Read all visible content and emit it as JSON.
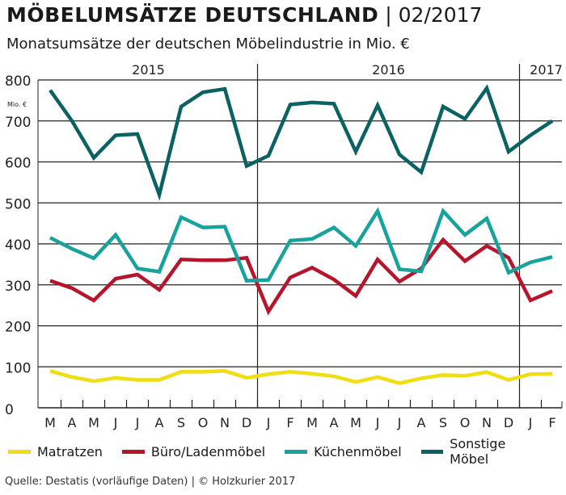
{
  "header": {
    "title_bold": "MÖBELUMSÄTZE DEUTSCHLAND",
    "title_rest": " | 02/2017",
    "subtitle": "Monatsumsätze der deutschen Möbelindustrie in Mio. €"
  },
  "source": "Quelle: Destatis (vorläufige Daten) | © Holzkurier 2017",
  "chart_data": {
    "type": "line",
    "title": "MÖBELUMSÄTZE DEUTSCHLAND | 02/2017",
    "ylabel": "Mio. €",
    "ylim": [
      0,
      800
    ],
    "yticks": [
      "0",
      "100",
      "200",
      "300",
      "400",
      "500",
      "600",
      "700",
      "800"
    ],
    "grid": true,
    "legend_position": "bottom",
    "years": [
      {
        "label": "2015",
        "start": 0,
        "end": 10
      },
      {
        "label": "2016",
        "start": 10,
        "end": 22
      },
      {
        "label": "2017",
        "start": 22,
        "end": 24
      }
    ],
    "categories": [
      "M",
      "A",
      "M",
      "J",
      "J",
      "A",
      "S",
      "O",
      "N",
      "D",
      "J",
      "F",
      "M",
      "A",
      "M",
      "J",
      "J",
      "A",
      "S",
      "O",
      "N",
      "D",
      "J",
      "F"
    ],
    "series": [
      {
        "name": "Matratzen",
        "color": "#f0de12",
        "values": [
          90,
          75,
          65,
          73,
          68,
          68,
          88,
          88,
          90,
          73,
          82,
          88,
          83,
          77,
          63,
          75,
          60,
          72,
          80,
          78,
          87,
          68,
          82,
          83
        ]
      },
      {
        "name": "Büro/Ladenmöbel",
        "color": "#b5162b",
        "values": [
          310,
          292,
          262,
          315,
          325,
          288,
          362,
          360,
          360,
          366,
          235,
          318,
          342,
          313,
          273,
          362,
          308,
          340,
          410,
          358,
          395,
          366,
          262,
          285
        ]
      },
      {
        "name": "Küchenmöbel",
        "color": "#17a39b",
        "values": [
          415,
          388,
          365,
          422,
          340,
          332,
          465,
          440,
          442,
          310,
          312,
          408,
          412,
          440,
          395,
          480,
          338,
          333,
          480,
          422,
          462,
          330,
          355,
          368
        ]
      },
      {
        "name": "Sonstige Möbel",
        "color": "#0c6262",
        "values": [
          775,
          700,
          610,
          665,
          668,
          520,
          735,
          770,
          778,
          590,
          615,
          740,
          745,
          742,
          625,
          738,
          618,
          575,
          735,
          705,
          780,
          625,
          665,
          700
        ]
      }
    ]
  }
}
